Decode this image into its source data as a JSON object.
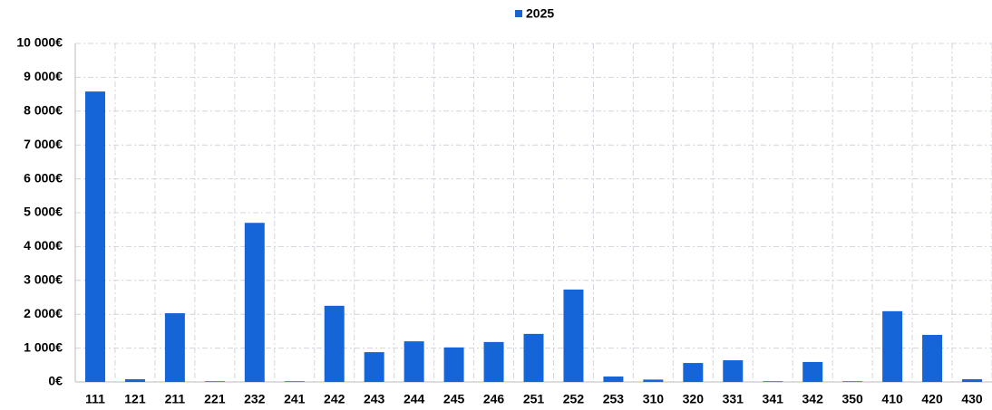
{
  "chart_data": {
    "type": "bar",
    "categories": [
      "111",
      "121",
      "211",
      "221",
      "232",
      "241",
      "242",
      "243",
      "244",
      "245",
      "246",
      "251",
      "252",
      "253",
      "310",
      "320",
      "331",
      "341",
      "342",
      "350",
      "410",
      "420",
      "430"
    ],
    "series": [
      {
        "name": "2025",
        "color": "#1565d8",
        "values": [
          8580,
          80,
          2030,
          20,
          4700,
          20,
          2250,
          880,
          1200,
          1020,
          1180,
          1420,
          2730,
          160,
          70,
          560,
          640,
          20,
          590,
          20,
          2090,
          1390,
          80
        ]
      }
    ],
    "ylim": [
      0,
      10000
    ],
    "yticks": [
      {
        "value": 0,
        "label": "0€"
      },
      {
        "value": 1000,
        "label": "1 000€"
      },
      {
        "value": 2000,
        "label": "2 000€"
      },
      {
        "value": 3000,
        "label": "3 000€"
      },
      {
        "value": 4000,
        "label": "4 000€"
      },
      {
        "value": 5000,
        "label": "5 000€"
      },
      {
        "value": 6000,
        "label": "6 000€"
      },
      {
        "value": 7000,
        "label": "7 000€"
      },
      {
        "value": 8000,
        "label": "8 000€"
      },
      {
        "value": 9000,
        "label": "9 000€"
      },
      {
        "value": 10000,
        "label": "10 000€"
      }
    ],
    "grid": true,
    "legend": "top"
  }
}
